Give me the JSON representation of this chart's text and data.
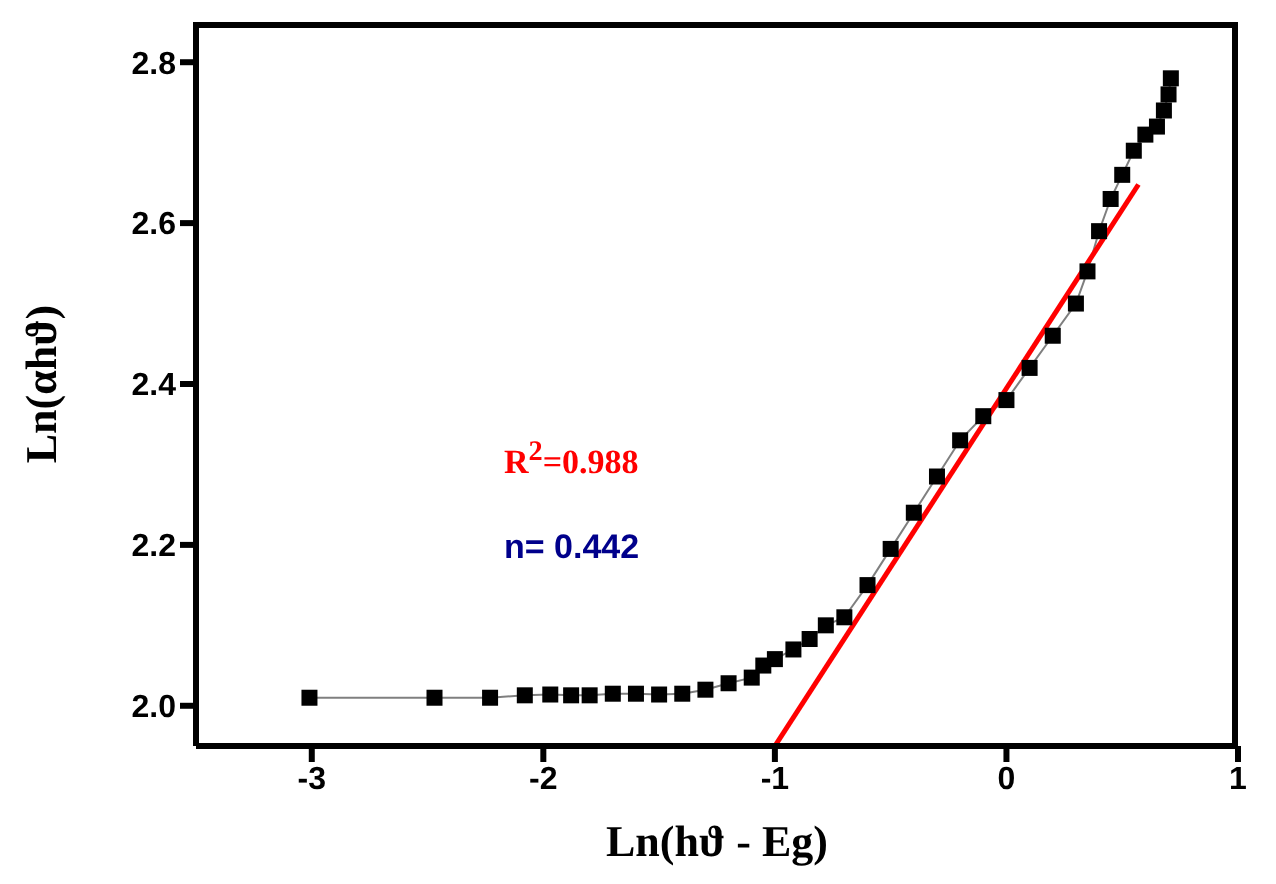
{
  "chart_data": {
    "type": "line",
    "xlabel": "Ln(hϑ - Eg)",
    "ylabel": "Ln(αhϑ)",
    "xlim": [
      -3.5,
      1
    ],
    "xticks": [
      -3,
      -2,
      -1,
      0,
      1
    ],
    "ylim": [
      1.95,
      2.85
    ],
    "yticks": [
      {
        "value": 2.0,
        "label": "2.0"
      },
      {
        "value": 2.2,
        "label": "2.2"
      },
      {
        "value": 2.4,
        "label": "2.4"
      },
      {
        "value": 2.6,
        "label": "2.6"
      },
      {
        "value": 2.8,
        "label": "2.8"
      }
    ],
    "annotations": [
      "R$^{2}$=0.988",
      "n= 0.442"
    ],
    "series": [
      {
        "color": "#000000",
        "marker": "square",
        "x": [
          -3.01,
          -2.47,
          -2.23,
          -2.08,
          -1.97,
          -1.88,
          -1.8,
          -1.7,
          -1.6,
          -1.5,
          -1.4,
          -1.3,
          -1.2,
          -1.1,
          -1.05,
          -1.0,
          -0.92,
          -0.85,
          -0.78,
          -0.7,
          -0.6,
          -0.5,
          -0.4,
          -0.3,
          -0.2,
          -0.1,
          0,
          0.1,
          0.2,
          0.3,
          0.35,
          0.4,
          0.45,
          0.5,
          0.55,
          0.6,
          0.65,
          0.68,
          0.7,
          0.71
        ],
        "values": [
          2.01,
          2.01,
          2.01,
          2.013,
          2.014,
          2.013,
          2.013,
          2.015,
          2.015,
          2.014,
          2.015,
          2.02,
          2.028,
          2.035,
          2.05,
          2.058,
          2.07,
          2.083,
          2.1,
          2.11,
          2.15,
          2.195,
          2.24,
          2.285,
          2.33,
          2.36,
          2.38,
          2.42,
          2.46,
          2.5,
          2.54,
          2.59,
          2.63,
          2.66,
          2.69,
          2.71,
          2.72,
          2.74,
          2.76,
          2.78
        ]
      },
      {
        "type": "line",
        "color": "#ff0000",
        "marker": "none",
        "x": [
          -1.0,
          0.57
        ],
        "values": [
          1.95,
          2.648
        ]
      }
    ]
  }
}
